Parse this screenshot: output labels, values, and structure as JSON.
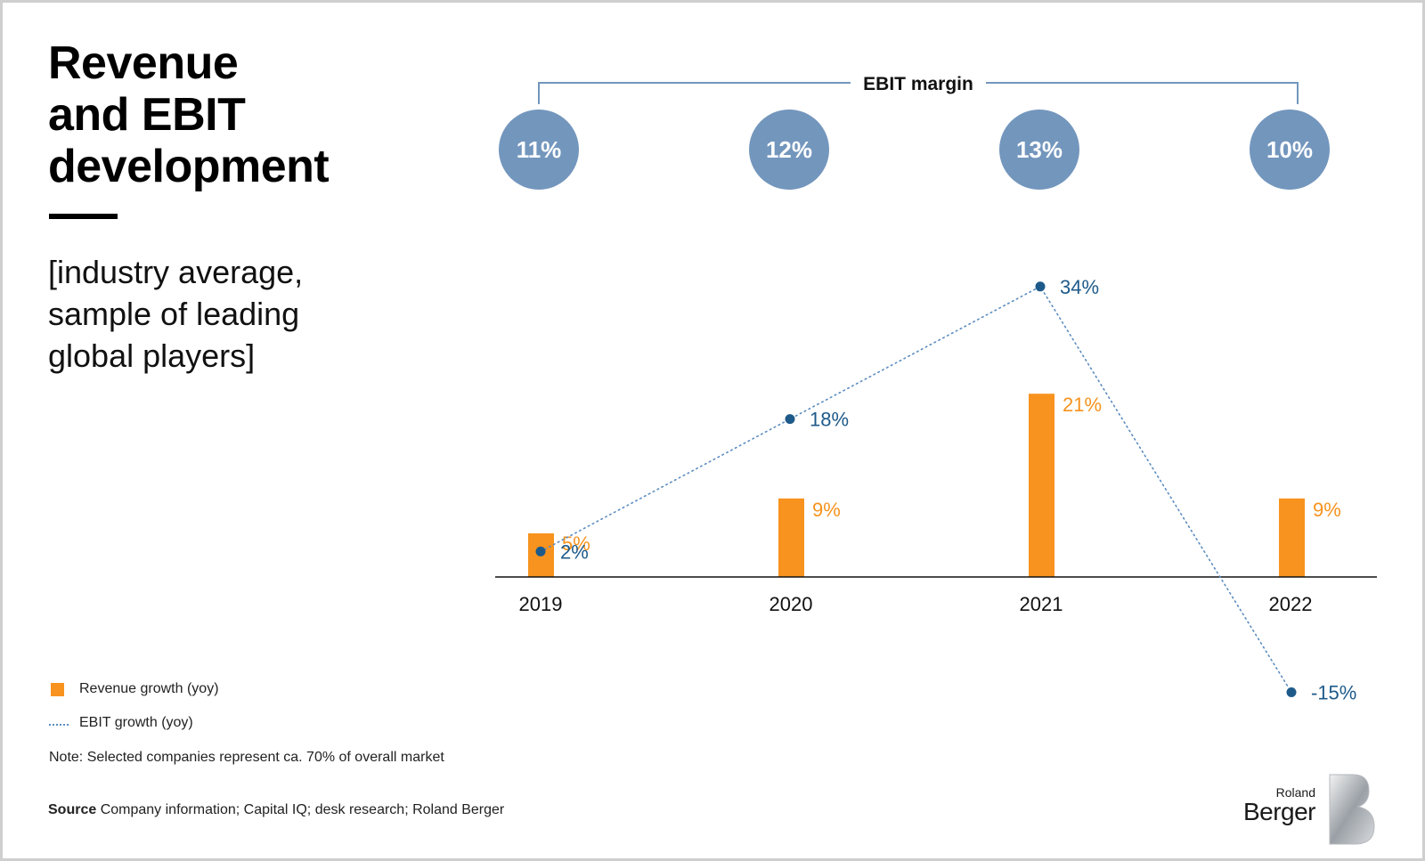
{
  "heading": {
    "title_lines": [
      "Revenue",
      "and EBIT",
      "development"
    ],
    "subtitle_lines": [
      "[industry average,",
      "sample of leading",
      "global players]"
    ]
  },
  "ebit_margin": {
    "label": "EBIT margin",
    "values": [
      "11%",
      "12%",
      "13%",
      "10%"
    ],
    "circle_color": "#7396bd"
  },
  "chart_data": {
    "type": "bar",
    "categories": [
      "2019",
      "2020",
      "2021",
      "2022"
    ],
    "series": [
      {
        "name": "Revenue growth (yoy)",
        "type": "bar",
        "values": [
          5,
          9,
          21,
          9
        ],
        "labels": [
          "5%",
          "9%",
          "21%",
          "9%"
        ],
        "color": "#f7931e"
      },
      {
        "name": "EBIT growth (yoy)",
        "type": "line",
        "style": "dotted",
        "values": [
          2,
          18,
          34,
          -15
        ],
        "labels": [
          "2%",
          "18%",
          "34%",
          "-15%"
        ],
        "color": "#1d5a8a"
      }
    ],
    "ylim": [
      -15,
      34
    ],
    "grid": false,
    "legend": "bottom-left"
  },
  "legend": {
    "bar_label": "Revenue growth (yoy)",
    "line_label": "EBIT growth (yoy)"
  },
  "note": "Note: Selected companies represent ca. 70% of overall market",
  "source": {
    "label": "Source",
    "text": "Company information; Capital IQ; desk research; Roland Berger"
  },
  "brand": {
    "small": "Roland",
    "big": "Berger",
    "logo_letter": "B"
  }
}
